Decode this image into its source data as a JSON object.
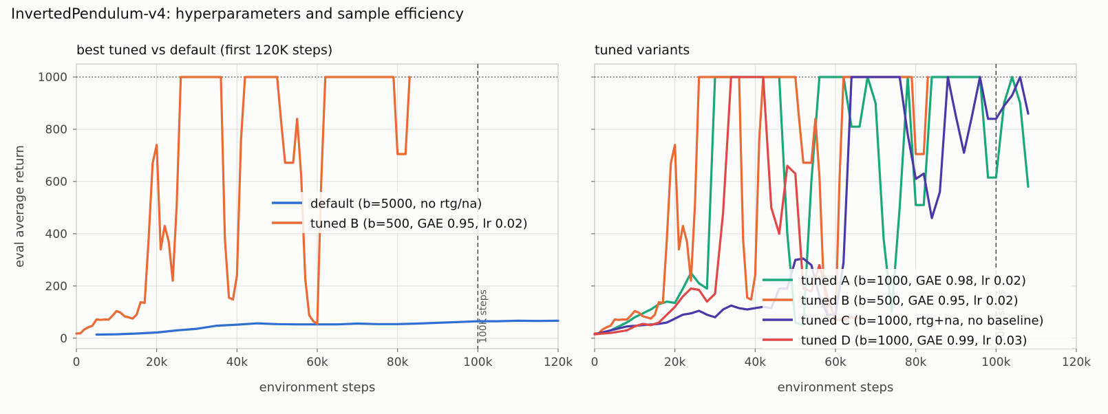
{
  "suptitle": "InvertedPendulum-v4: hyperparameters and sample efficiency",
  "colors": {
    "default": "#2e6fd1",
    "tuned_a": "#1aa87a",
    "tuned_b": "#ea6a35",
    "tuned_c": "#4a37a8",
    "tuned_d": "#e04848",
    "grid": "#dddddd",
    "axis": "#bbbbbb"
  },
  "chart_data": [
    {
      "type": "line",
      "title": "best tuned vs default (first 120K steps)",
      "xlabel": "environment steps",
      "ylabel": "eval average return",
      "xlim": [
        0,
        120000
      ],
      "ylim": [
        -40,
        1050
      ],
      "xticks": [
        0,
        20000,
        40000,
        60000,
        80000,
        100000,
        120000
      ],
      "xtick_labels": [
        "0",
        "20k",
        "40k",
        "60k",
        "80k",
        "100k",
        "120k"
      ],
      "yticks": [
        0,
        200,
        400,
        600,
        800,
        1000
      ],
      "ytick_labels": [
        "0",
        "200",
        "400",
        "600",
        "800",
        "1000"
      ],
      "grid": true,
      "legend_position": "center-right",
      "hline": {
        "y": 1000,
        "style": "dotted"
      },
      "vline": {
        "x": 100000,
        "style": "dashed",
        "label": "100K steps"
      },
      "series": [
        {
          "name": "default (b=5000, no rtg/na)",
          "color_key": "default",
          "x": [
            5000,
            10000,
            15000,
            20000,
            25000,
            30000,
            35000,
            40000,
            45000,
            50000,
            55000,
            60000,
            65000,
            70000,
            75000,
            80000,
            85000,
            90000,
            95000,
            100000,
            105000,
            110000,
            115000,
            120000
          ],
          "y": [
            14,
            15,
            18,
            22,
            30,
            36,
            48,
            52,
            57,
            54,
            53,
            53,
            53,
            56,
            54,
            54,
            56,
            59,
            62,
            65,
            65,
            67,
            66,
            67
          ]
        },
        {
          "name": "tuned B (b=500, GAE 0.95, lr 0.02)",
          "color_key": "tuned_b",
          "x": [
            0,
            1000,
            2000,
            3000,
            4000,
            5000,
            6000,
            7000,
            8000,
            9000,
            10000,
            11000,
            12000,
            13000,
            14000,
            15000,
            16000,
            17000,
            18000,
            19000,
            20000,
            21000,
            22000,
            23000,
            24000,
            25000,
            26000,
            36000,
            37000,
            38000,
            39000,
            40000,
            41000,
            42000,
            43000,
            50000,
            51000,
            52000,
            53000,
            54000,
            55000,
            56000,
            57000,
            58000,
            59000,
            60000,
            61000,
            62000,
            63000,
            79000,
            80000,
            81000,
            82000,
            83000
          ],
          "y": [
            18,
            19,
            34,
            42,
            48,
            72,
            70,
            72,
            71,
            86,
            104,
            98,
            84,
            80,
            75,
            90,
            138,
            135,
            380,
            670,
            740,
            340,
            430,
            370,
            220,
            510,
            1000,
            1000,
            380,
            155,
            148,
            240,
            760,
            1000,
            1000,
            1000,
            830,
            672,
            672,
            672,
            840,
            620,
            230,
            88,
            65,
            55,
            600,
            1000,
            1000,
            1000,
            705,
            705,
            705,
            1000
          ]
        }
      ]
    },
    {
      "type": "line",
      "title": "tuned variants",
      "xlabel": "environment steps",
      "ylabel": "",
      "xlim": [
        0,
        120000
      ],
      "ylim": [
        -40,
        1050
      ],
      "xticks": [
        0,
        20000,
        40000,
        60000,
        80000,
        100000,
        120000
      ],
      "xtick_labels": [
        "0",
        "20k",
        "40k",
        "60k",
        "80k",
        "100k",
        "120k"
      ],
      "yticks": [
        0,
        200,
        400,
        600,
        800,
        1000
      ],
      "grid": true,
      "legend_position": "lower-right",
      "hline": {
        "y": 1000,
        "style": "dotted"
      },
      "vline": {
        "x": 100000,
        "style": "dashed",
        "label": "100K steps"
      },
      "series": [
        {
          "name": "tuned A (b=1000, GAE 0.98, lr 0.02)",
          "color_key": "tuned_a",
          "x": [
            0,
            2000,
            4000,
            6000,
            8000,
            10000,
            12000,
            14000,
            16000,
            18000,
            20000,
            22000,
            24000,
            26000,
            28000,
            30000,
            32000,
            34000,
            36000,
            38000,
            40000,
            42000,
            44000,
            46000,
            48000,
            50000,
            52000,
            54000,
            56000,
            58000,
            60000,
            62000,
            64000,
            66000,
            68000,
            70000,
            72000,
            74000,
            76000,
            78000,
            80000,
            82000,
            84000,
            86000,
            88000,
            90000,
            92000,
            94000,
            96000,
            98000,
            100000,
            102000,
            104000,
            106000,
            108000
          ],
          "y": [
            15,
            20,
            30,
            45,
            60,
            80,
            95,
            110,
            130,
            140,
            135,
            190,
            250,
            210,
            190,
            1000,
            1000,
            1000,
            1000,
            1000,
            1000,
            1000,
            1000,
            1000,
            400,
            60,
            50,
            600,
            1000,
            1000,
            1000,
            1000,
            810,
            810,
            1000,
            900,
            380,
            100,
            500,
            1000,
            510,
            510,
            1000,
            1000,
            1000,
            1000,
            1000,
            1000,
            1000,
            615,
            615,
            900,
            1000,
            900,
            580
          ]
        },
        {
          "name": "tuned B (b=500, GAE 0.95, lr 0.02)",
          "color_key": "tuned_b",
          "x": [
            0,
            1000,
            2000,
            3000,
            4000,
            5000,
            6000,
            7000,
            8000,
            9000,
            10000,
            11000,
            12000,
            13000,
            14000,
            15000,
            16000,
            17000,
            18000,
            19000,
            20000,
            21000,
            22000,
            23000,
            24000,
            25000,
            26000,
            36000,
            37000,
            38000,
            39000,
            40000,
            41000,
            42000,
            43000,
            50000,
            51000,
            52000,
            53000,
            54000,
            55000,
            56000,
            57000,
            58000,
            59000,
            60000,
            61000,
            62000,
            63000,
            79000,
            80000,
            81000,
            82000,
            83000
          ],
          "y": [
            18,
            19,
            34,
            42,
            48,
            72,
            70,
            72,
            71,
            86,
            104,
            98,
            84,
            80,
            75,
            90,
            138,
            135,
            380,
            670,
            740,
            340,
            430,
            370,
            220,
            510,
            1000,
            1000,
            380,
            155,
            148,
            240,
            760,
            1000,
            1000,
            1000,
            830,
            672,
            672,
            672,
            840,
            620,
            230,
            88,
            65,
            55,
            600,
            1000,
            1000,
            1000,
            705,
            705,
            705,
            1000
          ]
        },
        {
          "name": "tuned C (b=1000, rtg+na, no baseline)",
          "color_key": "tuned_c",
          "x": [
            0,
            4000,
            8000,
            12000,
            16000,
            18000,
            20000,
            22000,
            24000,
            26000,
            28000,
            30000,
            32000,
            34000,
            36000,
            38000,
            40000,
            42000,
            44000,
            46000,
            48000,
            50000,
            52000,
            54000,
            56000,
            58000,
            60000,
            62000,
            64000,
            66000,
            68000,
            70000,
            72000,
            74000,
            76000,
            78000,
            80000,
            82000,
            84000,
            86000,
            88000,
            90000,
            92000,
            94000,
            96000,
            98000,
            100000,
            102000,
            104000,
            106000,
            108000
          ],
          "y": [
            15,
            30,
            45,
            50,
            55,
            60,
            75,
            90,
            95,
            105,
            90,
            80,
            110,
            125,
            115,
            110,
            115,
            120,
            115,
            190,
            190,
            300,
            305,
            280,
            160,
            90,
            90,
            290,
            1000,
            1000,
            1000,
            1000,
            1000,
            1000,
            1000,
            780,
            610,
            630,
            460,
            560,
            1000,
            850,
            710,
            850,
            1000,
            840,
            840,
            890,
            930,
            1000,
            860
          ]
        },
        {
          "name": "tuned D (b=1000, GAE 0.99, lr 0.03)",
          "color_key": "tuned_d",
          "x": [
            0,
            2000,
            4000,
            6000,
            8000,
            10000,
            12000,
            14000,
            16000,
            18000,
            20000,
            22000,
            24000,
            26000,
            28000,
            30000,
            32000,
            34000,
            36000,
            38000,
            40000,
            42000,
            44000,
            46000,
            48000,
            50000,
            52000,
            54000,
            56000,
            58000,
            60000,
            62000,
            64000,
            66000
          ],
          "y": [
            15,
            18,
            20,
            25,
            30,
            45,
            55,
            50,
            60,
            90,
            120,
            160,
            190,
            185,
            140,
            170,
            480,
            1000,
            1000,
            1000,
            1000,
            1000,
            500,
            400,
            660,
            630,
            190,
            180,
            280,
            160,
            70,
            70,
            80,
            75
          ]
        }
      ]
    }
  ]
}
